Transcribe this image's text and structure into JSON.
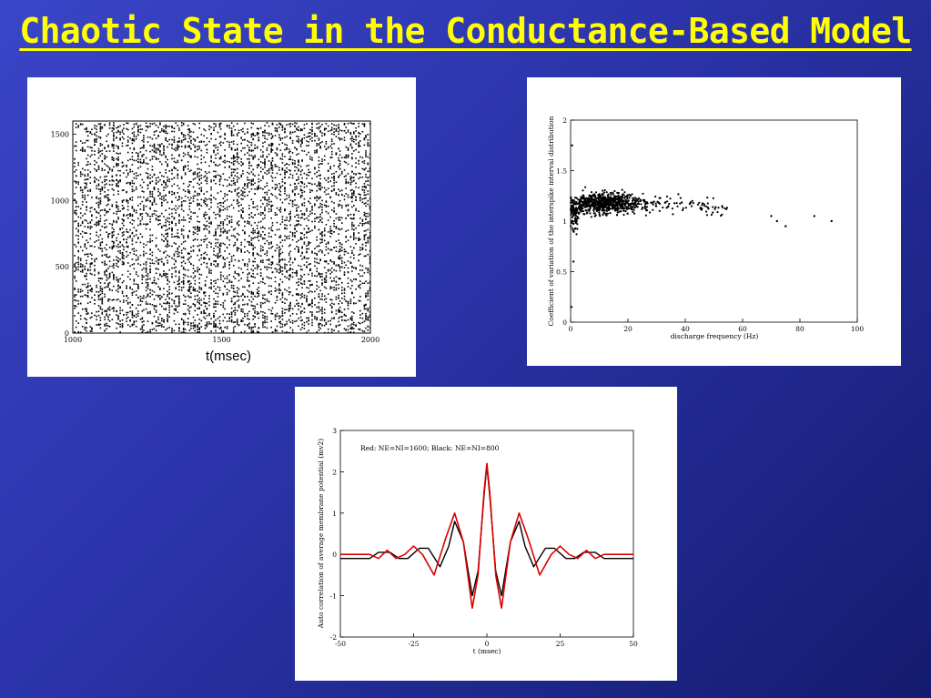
{
  "title": "Chaotic State in the Conductance-Based Model",
  "chart_data": [
    {
      "type": "scatter",
      "name": "raster",
      "xlabel": "t(msec)",
      "ylabel": "",
      "xlim": [
        1000,
        2000
      ],
      "ylim": [
        0,
        1600
      ],
      "xticks": [
        "1000",
        "1500",
        "2000"
      ],
      "yticks": [
        "0",
        "500",
        "1000",
        "1500"
      ],
      "grid": false
    },
    {
      "type": "scatter",
      "name": "cv-vs-frequency",
      "xlabel": "discharge frequency (Hz)",
      "ylabel": "Coefficient of variation of the interspike interval distribution",
      "xlim": [
        0,
        100
      ],
      "ylim": [
        0,
        2
      ],
      "xticks": [
        "0",
        "20",
        "40",
        "60",
        "80",
        "100"
      ],
      "yticks": [
        "0",
        "0.5",
        "1",
        "1.5",
        "2"
      ],
      "cloud_center": [
        12,
        1.2
      ],
      "outliers": [
        [
          0.5,
          1.75
        ],
        [
          1,
          0.6
        ],
        [
          0.3,
          0.15
        ],
        [
          70,
          1.05
        ],
        [
          72,
          1.0
        ],
        [
          75,
          0.95
        ],
        [
          85,
          1.05
        ],
        [
          91,
          1.0
        ]
      ],
      "grid": false
    },
    {
      "type": "line",
      "name": "autocorrelation",
      "xlabel": "t (msec)",
      "ylabel": "Auto correlation of average membrane potential (mv2)",
      "annotation": "Red: NE=NI=1600;  Black: NE=NI=800",
      "xlim": [
        -50,
        50
      ],
      "ylim": [
        -2,
        3
      ],
      "xticks": [
        "-50",
        "-25",
        "0",
        "25",
        "50"
      ],
      "yticks": [
        "-2",
        "-1",
        "0",
        "1",
        "2",
        "3"
      ],
      "series": [
        {
          "color": "#000000",
          "x": [
            -50,
            -40,
            -37,
            -33,
            -30,
            -27,
            -23,
            -20,
            -16,
            -13,
            -11,
            -8,
            -5,
            -3,
            -1,
            0,
            1,
            3,
            5,
            8,
            11,
            13,
            16,
            20,
            23,
            27,
            30,
            33,
            37,
            40,
            50
          ],
          "y": [
            -0.1,
            -0.1,
            0.05,
            0.05,
            -0.1,
            -0.1,
            0.15,
            0.15,
            -0.3,
            0.2,
            0.8,
            0.3,
            -1.0,
            -0.4,
            1.4,
            2.15,
            1.4,
            -0.4,
            -1.0,
            0.3,
            0.8,
            0.2,
            -0.3,
            0.15,
            0.15,
            -0.1,
            -0.1,
            0.05,
            0.05,
            -0.1,
            -0.1
          ]
        },
        {
          "color": "#dd0000",
          "x": [
            -50,
            -40,
            -37,
            -34,
            -31,
            -28,
            -25,
            -22,
            -18,
            -14,
            -11,
            -8,
            -5,
            -3,
            -1,
            0,
            1,
            3,
            5,
            8,
            11,
            14,
            18,
            22,
            25,
            28,
            31,
            34,
            37,
            40,
            50
          ],
          "y": [
            0.0,
            0.0,
            -0.1,
            0.1,
            -0.1,
            0.0,
            0.2,
            0.0,
            -0.5,
            0.4,
            1.0,
            0.3,
            -1.3,
            -0.5,
            1.5,
            2.2,
            1.5,
            -0.5,
            -1.3,
            0.3,
            1.0,
            0.4,
            -0.5,
            0.0,
            0.2,
            0.0,
            -0.1,
            0.1,
            -0.1,
            0.0,
            0.0
          ]
        }
      ],
      "grid": false
    }
  ]
}
